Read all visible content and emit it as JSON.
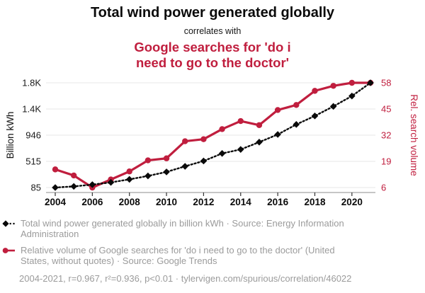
{
  "header": {
    "title": "Total wind power generated globally",
    "connector": "correlates with",
    "red_title_line1": "Google searches for 'do i",
    "red_title_line2": "need to go to the doctor'"
  },
  "colors": {
    "red": "#c01e3e",
    "series_black": "#0a0a0a",
    "legend_gray": "#9b9b9b",
    "gridline": "#e7e7e7",
    "axis_line": "#8c8c8c",
    "tick_label_black": "#1a1a1a"
  },
  "chart_data": {
    "type": "line",
    "title": "Total wind power generated globally correlates with Google searches for 'do i need to go to the doctor'",
    "x": [
      2004,
      2005,
      2006,
      2007,
      2008,
      2009,
      2010,
      2011,
      2012,
      2013,
      2014,
      2015,
      2016,
      2017,
      2018,
      2019,
      2020,
      2021
    ],
    "series": [
      {
        "name": "Total wind power generated globally in billion kWh",
        "axis": "left",
        "style": "dotted-diamond",
        "color": "#0a0a0a",
        "values": [
          85,
          104,
          133,
          170,
          220,
          276,
          342,
          434,
          522,
          646,
          712,
          832,
          958,
          1123,
          1263,
          1420,
          1591,
          1808
        ]
      },
      {
        "name": "Relative volume of Google searches for 'do i need to go to the doctor'",
        "axis": "right",
        "style": "solid-circle",
        "color": "#c01e3e",
        "values": [
          15,
          12,
          6,
          10,
          14,
          19.5,
          20.5,
          29,
          30,
          35,
          39,
          37,
          44.5,
          47,
          54,
          56.5,
          58,
          58
        ]
      }
    ],
    "left_axis": {
      "label": "Billion kWh",
      "ticks": [
        "1.8K",
        "1.4K",
        "946",
        "515",
        "85"
      ],
      "tick_values": [
        1808,
        1377,
        946,
        515,
        85
      ],
      "min": 85,
      "max": 1808
    },
    "right_axis": {
      "label": "Rel. search volume",
      "ticks": [
        "58",
        "45",
        "32",
        "19",
        "6"
      ],
      "tick_values": [
        58,
        45,
        32,
        19,
        6
      ],
      "min": 6,
      "max": 58
    },
    "x_axis": {
      "tick_labels": [
        "2004",
        "2006",
        "2008",
        "2010",
        "2012",
        "2014",
        "2016",
        "2018",
        "2020"
      ],
      "tick_years": [
        2004,
        2006,
        2008,
        2010,
        2012,
        2014,
        2016,
        2018,
        2020
      ],
      "range": [
        2004,
        2021
      ]
    },
    "grid": "horizontal-only",
    "legend_position": "bottom-left"
  },
  "legend": {
    "item1": "Total wind power generated globally in billion kWh · Source: Energy Information Administration",
    "item2": "Relative volume of Google searches for 'do i need to go to the doctor' (United States, without quotes) · Source: Google Trends",
    "footer": "2004-2021, r=0.967, r²=0.936, p<0.01 · tylervigen.com/spurious/correlation/46022"
  }
}
